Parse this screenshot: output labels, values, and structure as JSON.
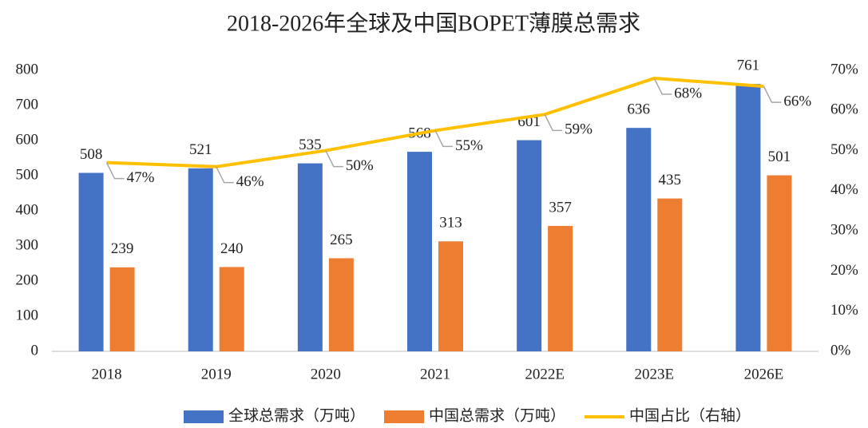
{
  "chart_data": {
    "type": "bar",
    "title": "2018-2026年全球及中国BOPET薄膜总需求",
    "categories": [
      "2018",
      "2019",
      "2020",
      "2021",
      "2022E",
      "2023E",
      "2026E"
    ],
    "series": [
      {
        "name": "全球总需求（万吨）",
        "color": "#4472c4",
        "type": "bar",
        "values": [
          508,
          521,
          535,
          568,
          601,
          636,
          761
        ]
      },
      {
        "name": "中国总需求（万吨）",
        "color": "#ed7d31",
        "type": "bar",
        "values": [
          239,
          240,
          265,
          313,
          357,
          435,
          501
        ]
      },
      {
        "name": "中国占比（右轴）",
        "color": "#ffc000",
        "type": "line",
        "axis": "y2",
        "values": [
          47,
          46,
          50,
          55,
          59,
          68,
          66
        ],
        "value_labels": [
          "47%",
          "46%",
          "50%",
          "55%",
          "59%",
          "68%",
          "66%"
        ]
      }
    ],
    "ylim": [
      0,
      800
    ],
    "yticks": [
      0,
      100,
      200,
      300,
      400,
      500,
      600,
      700,
      800
    ],
    "y2lim": [
      0,
      70
    ],
    "y2ticks": [
      {
        "value": 0,
        "label": "0%"
      },
      {
        "value": 10,
        "label": "10%"
      },
      {
        "value": 20,
        "label": "20%"
      },
      {
        "value": 30,
        "label": "30%"
      },
      {
        "value": 40,
        "label": "40%"
      },
      {
        "value": 50,
        "label": "50%"
      },
      {
        "value": 60,
        "label": "60%"
      },
      {
        "value": 70,
        "label": "70%"
      }
    ],
    "legend": "bottom"
  }
}
